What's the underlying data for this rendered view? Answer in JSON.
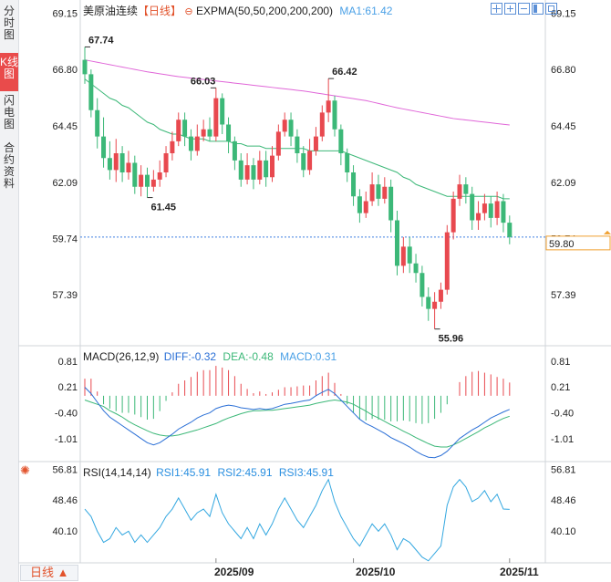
{
  "sidebar": {
    "tabs": [
      {
        "label": "分时图",
        "active": false
      },
      {
        "label": "K线图",
        "active": true
      },
      {
        "label": "闪电图",
        "active": false
      },
      {
        "label": "合约资料",
        "active": false
      }
    ]
  },
  "main_header": {
    "symbol": "美原油连续",
    "period": "【日线】",
    "indicator": "EXPMA(50,50,200,200,200)",
    "ma_label": "MA1:61.42"
  },
  "macd_header": {
    "name": "MACD(26,12,9)",
    "diff": "DIFF:-0.32",
    "dea": "DEA:-0.48",
    "macd": "MACD:0.31"
  },
  "rsi_header": {
    "name": "RSI(14,14,14)",
    "rsi1": "RSI1:45.91",
    "rsi2": "RSI2:45.91",
    "rsi3": "RSI3:45.91"
  },
  "footer": {
    "period_button": "日线 ▲"
  },
  "colors": {
    "up": "#e8494f",
    "down": "#3cb878",
    "ema": "#3cb878",
    "ma": "#e066d8",
    "diff": "#2a6fd6",
    "dea": "#3cb878",
    "rsi": "#33a7e0",
    "price_line": "#3d7fe0"
  },
  "icons": [
    "expma-settings-icon",
    "crosshair-icon",
    "zoom-in-icon",
    "zoom-out-icon",
    "layout-icon",
    "fullscreen-icon",
    "rsi-settings-icon"
  ],
  "chart_data": [
    {
      "type": "candlestick",
      "title": "美原油连续【日线】",
      "x_ticks": [
        "2025/09",
        "2025/10",
        "2025/11"
      ],
      "y_ticks": [
        69.15,
        66.8,
        64.45,
        62.09,
        59.74,
        57.39
      ],
      "ylim": [
        55.3,
        69.7
      ],
      "annotations": {
        "high_1": 67.74,
        "high_2": 66.03,
        "high_3": 66.42,
        "low_1": 61.45,
        "low_2": 55.96
      },
      "last_price": 59.8,
      "candles": [
        [
          67.2,
          66.6,
          67.74,
          66.2
        ],
        [
          66.6,
          65.1,
          66.8,
          64.8
        ],
        [
          65.1,
          64.0,
          65.6,
          63.5
        ],
        [
          64.0,
          63.1,
          64.8,
          62.7
        ],
        [
          63.1,
          62.6,
          63.8,
          62.2
        ],
        [
          62.6,
          63.3,
          63.9,
          62.1
        ],
        [
          63.3,
          62.5,
          63.6,
          62.1
        ],
        [
          62.5,
          62.9,
          63.4,
          62.2
        ],
        [
          62.9,
          61.9,
          63.2,
          61.6
        ],
        [
          61.9,
          62.4,
          62.8,
          61.5
        ],
        [
          62.4,
          61.9,
          62.7,
          61.45
        ],
        [
          61.9,
          62.2,
          62.6,
          61.7
        ],
        [
          62.2,
          62.5,
          63.0,
          61.9
        ],
        [
          62.5,
          63.3,
          63.6,
          62.3
        ],
        [
          63.3,
          63.8,
          64.2,
          63.0
        ],
        [
          63.8,
          64.7,
          65.0,
          63.6
        ],
        [
          64.7,
          64.0,
          65.0,
          63.6
        ],
        [
          64.0,
          63.4,
          64.3,
          63.0
        ],
        [
          63.4,
          64.0,
          64.5,
          63.2
        ],
        [
          64.0,
          64.3,
          64.7,
          63.8
        ],
        [
          64.3,
          64.0,
          64.8,
          63.8
        ],
        [
          64.0,
          65.6,
          66.03,
          63.8
        ],
        [
          65.6,
          64.5,
          65.8,
          64.1
        ],
        [
          64.5,
          63.8,
          64.8,
          63.3
        ],
        [
          63.8,
          63.0,
          64.0,
          62.6
        ],
        [
          63.0,
          62.2,
          63.3,
          61.9
        ],
        [
          62.2,
          62.8,
          63.3,
          62.0
        ],
        [
          62.8,
          62.2,
          63.1,
          61.8
        ],
        [
          62.2,
          63.0,
          63.4,
          62.0
        ],
        [
          63.0,
          62.3,
          63.4,
          61.9
        ],
        [
          62.3,
          63.2,
          63.6,
          62.1
        ],
        [
          63.2,
          64.2,
          64.5,
          63.0
        ],
        [
          64.2,
          64.7,
          65.0,
          64.0
        ],
        [
          64.7,
          64.0,
          65.0,
          63.6
        ],
        [
          64.0,
          63.3,
          64.3,
          62.9
        ],
        [
          63.3,
          62.6,
          63.6,
          62.3
        ],
        [
          62.6,
          63.4,
          63.9,
          62.4
        ],
        [
          63.4,
          64.0,
          64.4,
          63.2
        ],
        [
          64.0,
          65.0,
          65.3,
          63.8
        ],
        [
          65.0,
          65.5,
          66.42,
          64.6
        ],
        [
          65.5,
          64.3,
          65.7,
          64.0
        ],
        [
          64.3,
          63.3,
          64.5,
          62.8
        ],
        [
          63.3,
          62.5,
          63.5,
          62.1
        ],
        [
          62.5,
          61.5,
          62.8,
          61.1
        ],
        [
          61.5,
          60.8,
          61.8,
          60.4
        ],
        [
          60.8,
          61.3,
          61.7,
          60.6
        ],
        [
          61.3,
          62.0,
          62.5,
          61.1
        ],
        [
          62.0,
          61.4,
          62.4,
          61.1
        ],
        [
          61.4,
          61.9,
          62.3,
          61.2
        ],
        [
          61.9,
          60.5,
          62.2,
          60.0
        ],
        [
          60.5,
          58.6,
          60.9,
          58.2
        ],
        [
          58.6,
          59.4,
          59.8,
          58.3
        ],
        [
          59.4,
          58.7,
          59.8,
          58.3
        ],
        [
          58.7,
          58.3,
          59.1,
          57.9
        ],
        [
          58.3,
          57.3,
          58.6,
          56.9
        ],
        [
          57.3,
          56.8,
          57.7,
          56.3
        ],
        [
          56.8,
          57.1,
          57.5,
          55.96
        ],
        [
          57.1,
          57.6,
          57.9,
          56.8
        ],
        [
          57.6,
          60.0,
          60.3,
          57.4
        ],
        [
          60.0,
          61.4,
          61.7,
          59.7
        ],
        [
          61.4,
          62.0,
          62.4,
          61.1
        ],
        [
          62.0,
          61.6,
          62.3,
          61.2
        ],
        [
          61.6,
          60.5,
          61.9,
          60.1
        ],
        [
          60.5,
          60.8,
          61.3,
          60.1
        ],
        [
          60.8,
          61.2,
          61.6,
          60.5
        ],
        [
          61.2,
          60.6,
          61.5,
          60.2
        ],
        [
          60.6,
          61.3,
          61.7,
          60.3
        ],
        [
          61.3,
          60.4,
          61.6,
          60.0
        ],
        [
          60.4,
          59.8,
          60.7,
          59.5
        ]
      ],
      "ema_1": [
        66.4,
        66.2,
        66.0,
        65.8,
        65.6,
        65.5,
        65.3,
        65.2,
        65.0,
        64.8,
        64.6,
        64.5,
        64.3,
        64.2,
        64.1,
        64.1,
        64.0,
        63.9,
        63.9,
        63.9,
        63.8,
        63.8,
        63.8,
        63.8,
        63.7,
        63.7,
        63.6,
        63.6,
        63.6,
        63.5,
        63.5,
        63.5,
        63.5,
        63.5,
        63.5,
        63.5,
        63.4,
        63.4,
        63.4,
        63.4,
        63.4,
        63.4,
        63.3,
        63.2,
        63.1,
        63.0,
        62.9,
        62.8,
        62.7,
        62.6,
        62.5,
        62.3,
        62.2,
        62.0,
        61.9,
        61.8,
        61.7,
        61.6,
        61.5,
        61.5,
        61.5,
        61.5,
        61.5,
        61.5,
        61.5,
        61.5,
        61.5,
        61.4,
        61.4
      ],
      "ma_1": [
        67.2,
        67.15,
        67.1,
        67.05,
        67.0,
        66.95,
        66.9,
        66.85,
        66.8,
        66.75,
        66.7,
        66.66,
        66.62,
        66.58,
        66.54,
        66.5,
        66.47,
        66.44,
        66.41,
        66.38,
        66.35,
        66.32,
        66.29,
        66.26,
        66.23,
        66.2,
        66.17,
        66.14,
        66.11,
        66.08,
        66.05,
        66.02,
        65.99,
        65.96,
        65.93,
        65.9,
        65.86,
        65.82,
        65.78,
        65.74,
        65.7,
        65.66,
        65.62,
        65.58,
        65.54,
        65.5,
        65.44,
        65.38,
        65.32,
        65.26,
        65.2,
        65.15,
        65.1,
        65.05,
        65.0,
        64.95,
        64.9,
        64.85,
        64.8,
        64.75,
        64.72,
        64.69,
        64.66,
        64.63,
        64.6,
        64.57,
        64.54,
        64.51,
        64.48
      ]
    },
    {
      "type": "bar+line",
      "title": "MACD(26,12,9)",
      "y_ticks": [
        0.81,
        0.21,
        -0.4,
        -1.01
      ],
      "ylim": [
        -1.52,
        1.15
      ],
      "series": [
        {
          "name": "DIFF",
          "values": [
            0.2,
            0.05,
            -0.15,
            -0.35,
            -0.5,
            -0.6,
            -0.7,
            -0.8,
            -0.9,
            -1.0,
            -1.1,
            -1.15,
            -1.1,
            -1.0,
            -0.9,
            -0.78,
            -0.7,
            -0.62,
            -0.52,
            -0.45,
            -0.4,
            -0.3,
            -0.25,
            -0.22,
            -0.24,
            -0.28,
            -0.3,
            -0.32,
            -0.3,
            -0.32,
            -0.3,
            -0.25,
            -0.2,
            -0.18,
            -0.15,
            -0.12,
            -0.1,
            0.0,
            0.08,
            0.15,
            0.05,
            -0.1,
            -0.25,
            -0.4,
            -0.55,
            -0.65,
            -0.72,
            -0.8,
            -0.88,
            -0.98,
            -1.05,
            -1.12,
            -1.2,
            -1.3,
            -1.38,
            -1.44,
            -1.45,
            -1.4,
            -1.3,
            -1.15,
            -1.0,
            -0.9,
            -0.8,
            -0.72,
            -0.62,
            -0.52,
            -0.45,
            -0.38,
            -0.32
          ]
        },
        {
          "name": "DEA",
          "values": [
            -0.1,
            -0.15,
            -0.2,
            -0.25,
            -0.35,
            -0.42,
            -0.5,
            -0.6,
            -0.68,
            -0.75,
            -0.82,
            -0.88,
            -0.92,
            -0.94,
            -0.94,
            -0.92,
            -0.88,
            -0.84,
            -0.8,
            -0.75,
            -0.7,
            -0.65,
            -0.58,
            -0.52,
            -0.47,
            -0.42,
            -0.38,
            -0.35,
            -0.35,
            -0.34,
            -0.34,
            -0.32,
            -0.3,
            -0.28,
            -0.26,
            -0.24,
            -0.22,
            -0.18,
            -0.15,
            -0.12,
            -0.1,
            -0.12,
            -0.15,
            -0.2,
            -0.28,
            -0.36,
            -0.45,
            -0.52,
            -0.6,
            -0.68,
            -0.75,
            -0.83,
            -0.9,
            -0.98,
            -1.05,
            -1.12,
            -1.18,
            -1.2,
            -1.2,
            -1.15,
            -1.08,
            -1.0,
            -0.92,
            -0.84,
            -0.75,
            -0.68,
            -0.6,
            -0.53,
            -0.48
          ]
        },
        {
          "name": "MACD",
          "values": [
            0.4,
            0.4,
            0.1,
            -0.2,
            -0.3,
            -0.36,
            -0.4,
            -0.4,
            -0.44,
            -0.5,
            -0.56,
            -0.54,
            -0.36,
            -0.12,
            0.08,
            0.28,
            0.36,
            0.44,
            0.56,
            0.6,
            0.6,
            0.7,
            0.66,
            0.6,
            0.46,
            0.28,
            0.16,
            0.06,
            0.1,
            0.04,
            0.08,
            0.14,
            0.2,
            0.2,
            0.22,
            0.24,
            0.24,
            0.36,
            0.46,
            0.54,
            0.3,
            0.04,
            -0.2,
            -0.4,
            -0.54,
            -0.58,
            -0.54,
            -0.56,
            -0.56,
            -0.6,
            -0.6,
            -0.58,
            -0.6,
            -0.64,
            -0.66,
            -0.64,
            -0.54,
            -0.4,
            -0.2,
            0.0,
            0.32,
            0.46,
            0.56,
            0.58,
            0.54,
            0.5,
            0.44,
            0.4,
            0.31
          ]
        }
      ]
    },
    {
      "type": "line",
      "title": "RSI(14,14,14)",
      "y_ticks": [
        56.81,
        48.46,
        40.1
      ],
      "ylim": [
        31.7,
        58.6
      ],
      "series": [
        {
          "name": "RSI1",
          "values": [
            46,
            44,
            40,
            37,
            38,
            41,
            39,
            40,
            37,
            39,
            37,
            39,
            41,
            44,
            46,
            49,
            46,
            43,
            45,
            46,
            44,
            50,
            45,
            42,
            40,
            38,
            41,
            38,
            42,
            39,
            42,
            46,
            49,
            46,
            43,
            41,
            44,
            47,
            51,
            54,
            48,
            44,
            41,
            38,
            36,
            39,
            42,
            40,
            42,
            39,
            35,
            38,
            37,
            35,
            33,
            32,
            34,
            36,
            47,
            52,
            54,
            52,
            48,
            49,
            51,
            48,
            50,
            46,
            45.91
          ]
        }
      ]
    }
  ]
}
